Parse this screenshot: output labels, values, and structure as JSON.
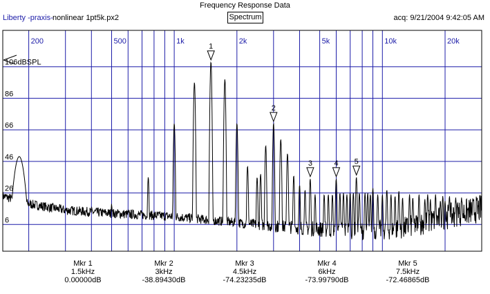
{
  "header": {
    "title": "Frequency Response Data",
    "app_name": "Liberty -praxis-",
    "file_name": "nonlinear 1pt5k.px2",
    "view_button": "Spectrum",
    "acquired": "acq: 9/21/2004 9:42:05 AM"
  },
  "colors": {
    "grid": "#1c1ca8",
    "trace": "#000000",
    "background": "#ffffff"
  },
  "chart_data": {
    "type": "line",
    "title": "Frequency Response Data",
    "x_scale": "log",
    "xlim": [
      150,
      30000
    ],
    "ylim": [
      -14,
      126
    ],
    "x_tick_labels": [
      {
        "x": 200,
        "label": "200"
      },
      {
        "x": 500,
        "label": "500"
      },
      {
        "x": 1000,
        "label": "1k"
      },
      {
        "x": 2000,
        "label": "2k"
      },
      {
        "x": 5000,
        "label": "5k"
      },
      {
        "x": 10000,
        "label": "10k"
      },
      {
        "x": 20000,
        "label": "20k"
      }
    ],
    "x_minor_gridlines": [
      200,
      300,
      400,
      500,
      600,
      700,
      800,
      900,
      1000,
      2000,
      3000,
      4000,
      5000,
      6000,
      7000,
      8000,
      9000,
      10000,
      20000
    ],
    "y_ticks": [
      106,
      86,
      66,
      46,
      26,
      6
    ],
    "y_unit": "dBSPL",
    "grid": true,
    "harmonics": [
      {
        "freq": 1500,
        "level": 106
      },
      {
        "freq": 3000,
        "level": 67
      },
      {
        "freq": 4500,
        "level": 32
      },
      {
        "freq": 6000,
        "level": 32
      },
      {
        "freq": 7500,
        "level": 33
      },
      {
        "freq": 9000,
        "level": 26
      },
      {
        "freq": 10500,
        "level": 25
      },
      {
        "freq": 12000,
        "level": 24
      },
      {
        "freq": 13500,
        "level": 22
      },
      {
        "freq": 15000,
        "level": 22
      },
      {
        "freq": 16500,
        "level": 22
      },
      {
        "freq": 18000,
        "level": 22
      },
      {
        "freq": 19500,
        "level": 21
      },
      {
        "freq": 21000,
        "level": 21
      },
      {
        "freq": 22500,
        "level": 20
      },
      {
        "freq": 24000,
        "level": 20
      }
    ],
    "sidebands": [
      {
        "freq": 1250,
        "level": 93
      },
      {
        "freq": 1750,
        "level": 95
      },
      {
        "freq": 1000,
        "level": 67
      },
      {
        "freq": 2000,
        "level": 67
      },
      {
        "freq": 750,
        "level": 33
      },
      {
        "freq": 2250,
        "level": 40
      },
      {
        "freq": 500,
        "level": 16
      },
      {
        "freq": 2500,
        "level": 33
      },
      {
        "freq": 2750,
        "level": 53
      },
      {
        "freq": 3250,
        "level": 57
      },
      {
        "freq": 3500,
        "level": 48
      },
      {
        "freq": 2600,
        "level": 35
      },
      {
        "freq": 3750,
        "level": 34
      },
      {
        "freq": 4000,
        "level": 28
      },
      {
        "freq": 4250,
        "level": 25
      },
      {
        "freq": 4750,
        "level": 22
      },
      {
        "freq": 5250,
        "level": 22
      },
      {
        "freq": 5500,
        "level": 22
      },
      {
        "freq": 5750,
        "level": 22
      },
      {
        "freq": 6250,
        "level": 23
      },
      {
        "freq": 6500,
        "level": 23
      },
      {
        "freq": 6750,
        "level": 22
      },
      {
        "freq": 7000,
        "level": 23
      },
      {
        "freq": 7250,
        "level": 23
      },
      {
        "freq": 7750,
        "level": 23
      },
      {
        "freq": 8250,
        "level": 23
      },
      {
        "freq": 8500,
        "level": 23
      },
      {
        "freq": 8750,
        "level": 22
      },
      {
        "freq": 9500,
        "level": 22
      },
      {
        "freq": 10000,
        "level": 22
      },
      {
        "freq": 11000,
        "level": 22
      },
      {
        "freq": 11500,
        "level": 21
      },
      {
        "freq": 12500,
        "level": 20
      },
      {
        "freq": 14000,
        "level": 20
      },
      {
        "freq": 16000,
        "level": 19
      },
      {
        "freq": 17000,
        "level": 19
      },
      {
        "freq": 19000,
        "level": 18
      },
      {
        "freq": 20000,
        "level": 18
      },
      {
        "freq": 23000,
        "level": 17
      }
    ],
    "low_end_peak": {
      "freq": 180,
      "level": 46
    },
    "noise_floor": [
      {
        "freq": 150,
        "level": 21
      },
      {
        "freq": 200,
        "level": 16
      },
      {
        "freq": 300,
        "level": 12
      },
      {
        "freq": 500,
        "level": 10
      },
      {
        "freq": 1000,
        "level": 8
      },
      {
        "freq": 2000,
        "level": 4
      },
      {
        "freq": 3000,
        "level": 2
      },
      {
        "freq": 5000,
        "level": 0
      },
      {
        "freq": 8000,
        "level": -1
      },
      {
        "freq": 12000,
        "level": 0
      },
      {
        "freq": 17000,
        "level": 5
      },
      {
        "freq": 22000,
        "level": 9
      },
      {
        "freq": 30000,
        "level": 13
      }
    ],
    "markers": [
      {
        "id": "1",
        "freq": 1500,
        "level": 106
      },
      {
        "id": "2",
        "freq": 3000,
        "level": 67
      },
      {
        "id": "3",
        "freq": 4500,
        "level": 32
      },
      {
        "id": "4",
        "freq": 6000,
        "level": 32
      },
      {
        "id": "5",
        "freq": 7500,
        "level": 33
      }
    ],
    "marker_table": [
      {
        "label": "Mkr 1",
        "freq": "1.5kHz",
        "value": "0.00000dB"
      },
      {
        "label": "Mkr 2",
        "freq": "3kHz",
        "value": "-38.89430dB"
      },
      {
        "label": "Mkr 3",
        "freq": "4.5kHz",
        "value": "-74.23235dB"
      },
      {
        "label": "Mkr 4",
        "freq": "6kHz",
        "value": "-73.99790dB"
      },
      {
        "label": "Mkr 5",
        "freq": "7.5kHz",
        "value": "-72.46865dB"
      }
    ]
  }
}
